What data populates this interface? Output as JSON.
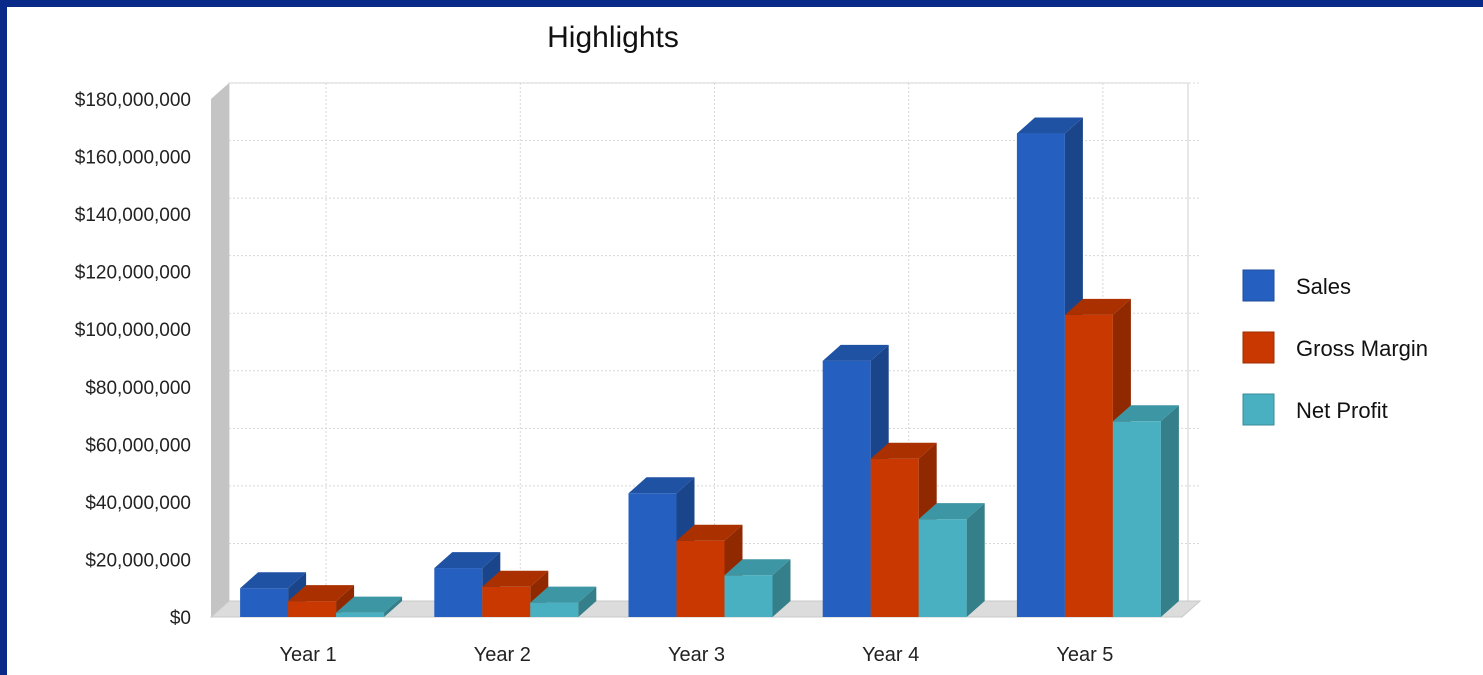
{
  "chart_data": {
    "type": "bar",
    "title": "Highlights",
    "xlabel": "",
    "ylabel": "",
    "categories": [
      "Year 1",
      "Year 2",
      "Year 3",
      "Year 4",
      "Year 5"
    ],
    "ylim": [
      0,
      180000000
    ],
    "yticks": [
      0,
      20000000,
      40000000,
      60000000,
      80000000,
      100000000,
      120000000,
      140000000,
      160000000,
      180000000
    ],
    "ytick_labels": [
      "$0",
      "$20,000,000",
      "$40,000,000",
      "$60,000,000",
      "$80,000,000",
      "$100,000,000",
      "$120,000,000",
      "$140,000,000",
      "$160,000,000",
      "$180,000,000"
    ],
    "grid": true,
    "legend_position": "right",
    "style": "3d",
    "series": [
      {
        "name": "Sales",
        "color": "#2560c0",
        "values": [
          10000000,
          17000000,
          43000000,
          89000000,
          168000000
        ]
      },
      {
        "name": "Gross Margin",
        "color": "#c83800",
        "values": [
          5500000,
          10500000,
          26500000,
          55000000,
          105000000
        ]
      },
      {
        "name": "Net Profit",
        "color": "#48b0c0",
        "values": [
          1500000,
          5000000,
          14500000,
          34000000,
          68000000
        ]
      }
    ]
  }
}
